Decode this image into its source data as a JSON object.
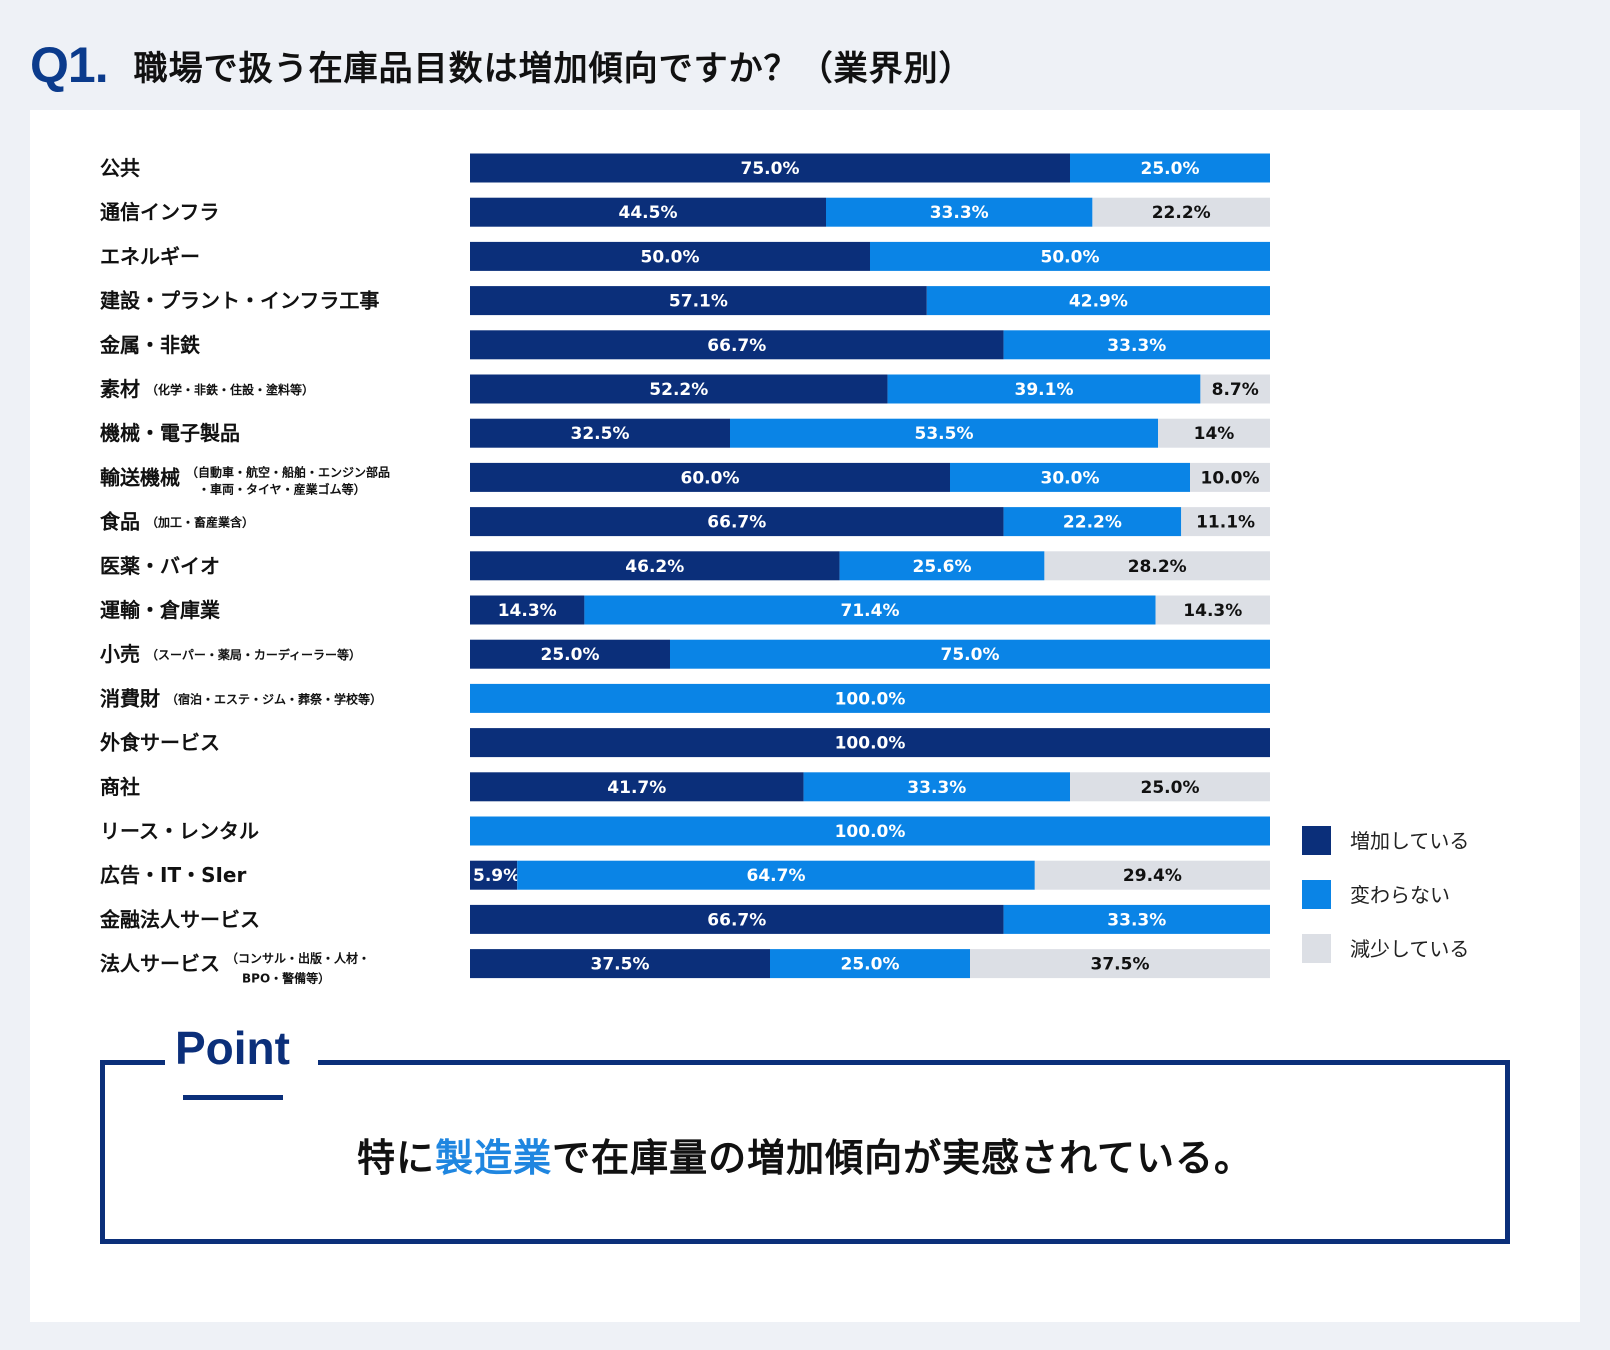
{
  "header": {
    "q_number": "Q1.",
    "title": "職場で扱う在庫品目数は増加傾向ですか？（業界別）"
  },
  "colors": {
    "increase": "#0b2f7a",
    "unchanged": "#0a84e6",
    "decrease": "#dcdfe5",
    "label_light": "#ffffff",
    "label_dark": "#111111"
  },
  "chart_data": {
    "type": "bar",
    "orientation": "horizontal-stacked-100",
    "categories": [
      {
        "name": "公共",
        "note": ""
      },
      {
        "name": "通信インフラ",
        "note": ""
      },
      {
        "name": "エネルギー",
        "note": ""
      },
      {
        "name": "建設・プラント・インフラ工事",
        "note": ""
      },
      {
        "name": "金属・非鉄",
        "note": ""
      },
      {
        "name": "素材",
        "note": "（化学・非鉄・住設・塗料等）"
      },
      {
        "name": "機械・電子製品",
        "note": ""
      },
      {
        "name": "輸送機械",
        "note": "（自動車・航空・船舶・エンジン部品",
        "note2": "・車両・タイヤ・産業ゴム等）"
      },
      {
        "name": "食品",
        "note": "（加工・畜産業含）"
      },
      {
        "name": "医薬・バイオ",
        "note": ""
      },
      {
        "name": "運輸・倉庫業",
        "note": ""
      },
      {
        "name": "小売",
        "note": "（スーパー・薬局・カーディーラー等）"
      },
      {
        "name": "消費財",
        "note": "（宿泊・エステ・ジム・葬祭・学校等）"
      },
      {
        "name": "外食サービス",
        "note": ""
      },
      {
        "name": "商社",
        "note": ""
      },
      {
        "name": "リース・レンタル",
        "note": ""
      },
      {
        "name": "広告・IT・SIer",
        "note": ""
      },
      {
        "name": "金融法人サービス",
        "note": ""
      },
      {
        "name": "法人サービス",
        "note": "（コンサル・出版・人材・",
        "note_line2": "BPO・警備等）"
      }
    ],
    "series": [
      {
        "name": "増加している",
        "values": [
          75.0,
          44.5,
          50.0,
          57.1,
          66.7,
          52.2,
          32.5,
          60.0,
          66.7,
          46.2,
          14.3,
          25.0,
          0,
          100.0,
          41.7,
          0,
          5.9,
          66.7,
          37.5
        ],
        "labels": [
          "75.0%",
          "44.5%",
          "50.0%",
          "57.1%",
          "66.7%",
          "52.2%",
          "32.5%",
          "60.0%",
          "66.7%",
          "46.2%",
          "14.3%",
          "25.0%",
          "",
          "100.0%",
          "41.7%",
          "",
          "5.9%",
          "66.7%",
          "37.5%"
        ]
      },
      {
        "name": "変わらない",
        "values": [
          25.0,
          33.3,
          50.0,
          42.9,
          33.3,
          39.1,
          53.5,
          30.0,
          22.2,
          25.6,
          71.4,
          75.0,
          100.0,
          0,
          33.3,
          100.0,
          64.7,
          33.3,
          25.0
        ],
        "labels": [
          "25.0%",
          "33.3%",
          "50.0%",
          "42.9%",
          "33.3%",
          "39.1%",
          "53.5%",
          "30.0%",
          "22.2%",
          "25.6%",
          "71.4%",
          "75.0%",
          "100.0%",
          "",
          "33.3%",
          "100.0%",
          "64.7%",
          "33.3%",
          "25.0%"
        ]
      },
      {
        "name": "減少している",
        "values": [
          0,
          22.2,
          0,
          0,
          0,
          8.7,
          14,
          10.0,
          11.1,
          28.2,
          14.3,
          0,
          0,
          0,
          25.0,
          0,
          29.4,
          0,
          37.5
        ],
        "labels": [
          "",
          "22.2%",
          "",
          "",
          "",
          "8.7%",
          "14%",
          "10.0%",
          "11.1%",
          "28.2%",
          "14.3%",
          "",
          "",
          "",
          "25.0%",
          "",
          "29.4%",
          "",
          "37.5%"
        ]
      }
    ],
    "xlim": [
      0,
      100
    ],
    "legend_position": "right-bottom",
    "grid": false
  },
  "point": {
    "title": "Point",
    "text_before": "特に",
    "text_highlight": "製造業",
    "text_after": "で在庫量の増加傾向が実感されている。"
  }
}
